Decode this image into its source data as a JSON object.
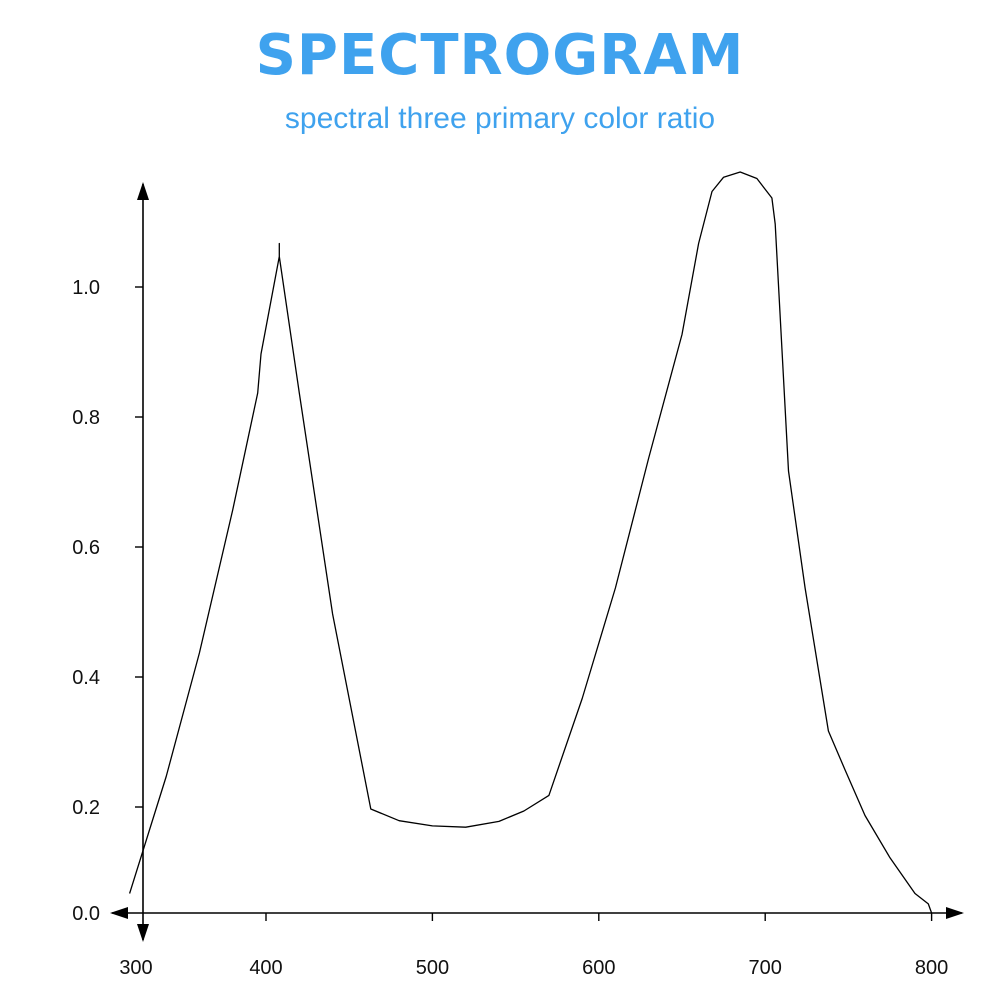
{
  "chart_data": {
    "type": "line",
    "title": "SPECTROGRAM",
    "subtitle": "spectral three primary color ratio",
    "xlabel": "",
    "ylabel": "",
    "xlim": [
      300,
      800
    ],
    "ylim": [
      0.0,
      1.2
    ],
    "x_ticks": [
      300,
      400,
      500,
      600,
      700,
      800
    ],
    "y_ticks": [
      "0.0",
      "0.2",
      "0.4",
      "0.6",
      "0.8",
      "1.0"
    ],
    "grid": false,
    "legend": "none",
    "series": [
      {
        "color": "#000000",
        "points": [
          [
            318,
            0.03
          ],
          [
            340,
            0.21
          ],
          [
            360,
            0.4
          ],
          [
            380,
            0.62
          ],
          [
            395,
            0.8
          ],
          [
            397,
            0.86
          ],
          [
            408,
            1.01
          ],
          [
            408,
            1.03
          ],
          [
            408,
            1.01
          ],
          [
            420,
            0.8
          ],
          [
            440,
            0.46
          ],
          [
            463,
            0.16
          ],
          [
            480,
            0.142
          ],
          [
            500,
            0.134
          ],
          [
            520,
            0.132
          ],
          [
            540,
            0.141
          ],
          [
            555,
            0.157
          ],
          [
            570,
            0.181
          ],
          [
            590,
            0.33
          ],
          [
            610,
            0.5
          ],
          [
            630,
            0.7
          ],
          [
            650,
            0.89
          ],
          [
            660,
            1.03
          ],
          [
            668,
            1.11
          ],
          [
            675,
            1.132
          ],
          [
            685,
            1.14
          ],
          [
            695,
            1.13
          ],
          [
            704,
            1.1
          ],
          [
            706,
            1.06
          ],
          [
            714,
            0.68
          ],
          [
            724,
            0.5
          ],
          [
            738,
            0.28
          ],
          [
            748,
            0.22
          ],
          [
            760,
            0.15
          ],
          [
            775,
            0.085
          ],
          [
            790,
            0.03
          ],
          [
            798,
            0.014
          ],
          [
            800,
            0.0
          ]
        ]
      }
    ],
    "colors": {
      "title": "#3fa2ee",
      "subtitle": "#3fa2ee",
      "axis": "#000000",
      "line": "#000000"
    }
  }
}
